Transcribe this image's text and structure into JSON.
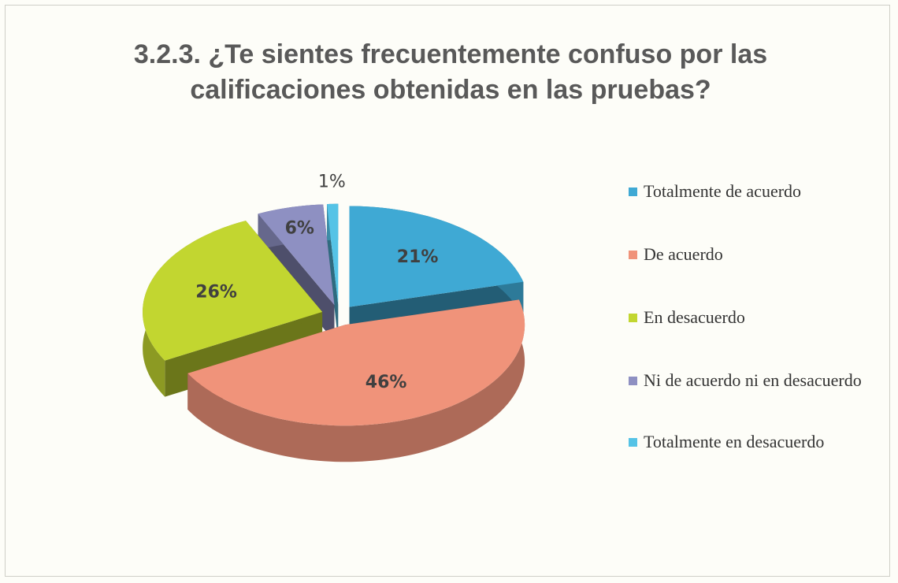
{
  "chart_data": {
    "type": "pie",
    "title_lines": [
      "3.2.3. ¿Te sientes frecuentemente confuso por las",
      "calificaciones obtenidas en las pruebas?"
    ],
    "categories": [
      "Totalmente de acuerdo",
      "De acuerdo",
      "En desacuerdo",
      "Ni de acuerdo ni en desacuerdo",
      "Totalmente en desacuerdo"
    ],
    "values": [
      21,
      46,
      26,
      6,
      1
    ],
    "value_labels": [
      "21%",
      "46%",
      "26%",
      "6%",
      "1%"
    ],
    "colors": [
      "#3fa9d4",
      "#f0937a",
      "#c2d630",
      "#8e90c2",
      "#55c3e6"
    ],
    "legend": "right"
  }
}
